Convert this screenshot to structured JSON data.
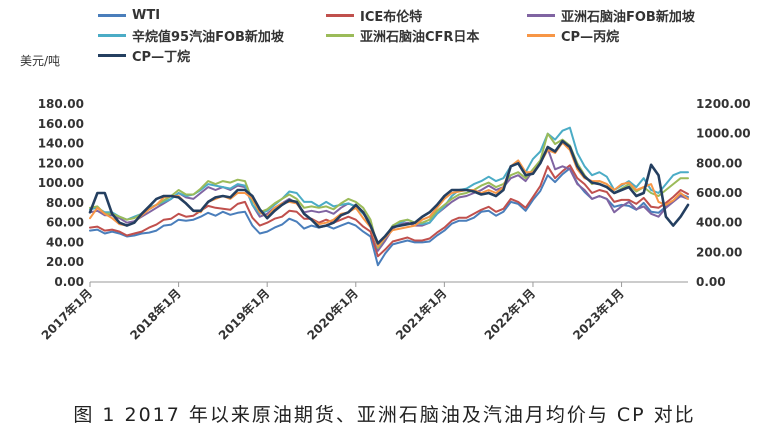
{
  "caption": "图 1  2017 年以来原油期货、亚洲石脑油及汽油月均价与 CP 对比",
  "chart_data": {
    "type": "line",
    "unit_label": "美元/吨",
    "x_ticks": [
      "2017年1月",
      "2018年1月",
      "2019年1月",
      "2020年1月",
      "2021年1月",
      "2022年1月",
      "2023年1月"
    ],
    "y_left": {
      "range": [
        0,
        180
      ],
      "ticks": [
        "0.00",
        "20.00",
        "40.00",
        "60.00",
        "80.00",
        "100.00",
        "120.00",
        "140.00",
        "160.00",
        "180.00"
      ]
    },
    "y_right": {
      "range": [
        0,
        1200
      ],
      "ticks": [
        "0.00",
        "200.00",
        "400.00",
        "600.00",
        "800.00",
        "1000.00",
        "1200.00"
      ]
    },
    "months": 82,
    "series": [
      {
        "name": "WTI",
        "axis": "left",
        "color": "#4a7ebb",
        "values": [
          52,
          53,
          49,
          51,
          49,
          46,
          47,
          49,
          50,
          52,
          57,
          58,
          63,
          62,
          63,
          66,
          70,
          67,
          71,
          68,
          70,
          71,
          57,
          49,
          51,
          55,
          58,
          64,
          61,
          54,
          57,
          55,
          57,
          54,
          57,
          60,
          57,
          51,
          46,
          17,
          29,
          38,
          40,
          42,
          40,
          40,
          41,
          47,
          52,
          59,
          62,
          62,
          65,
          71,
          72,
          67,
          71,
          81,
          79,
          72,
          83,
          92,
          108,
          101,
          109,
          115,
          100,
          91,
          84,
          87,
          84,
          76,
          78,
          77,
          73,
          80,
          71,
          70,
          76,
          82,
          89,
          86
        ]
      },
      {
        "name": "ICE布伦特",
        "axis": "left",
        "color": "#c0504d",
        "values": [
          55,
          56,
          52,
          53,
          51,
          47,
          49,
          51,
          55,
          58,
          63,
          64,
          69,
          66,
          67,
          72,
          77,
          75,
          74,
          73,
          79,
          81,
          65,
          57,
          60,
          64,
          66,
          72,
          71,
          64,
          64,
          60,
          63,
          60,
          63,
          66,
          63,
          56,
          51,
          26,
          33,
          41,
          43,
          45,
          42,
          42,
          44,
          50,
          55,
          62,
          65,
          65,
          69,
          73,
          76,
          71,
          74,
          84,
          81,
          75,
          86,
          97,
          117,
          105,
          112,
          118,
          105,
          99,
          90,
          93,
          91,
          81,
          83,
          83,
          79,
          85,
          76,
          75,
          80,
          86,
          93,
          89
        ]
      },
      {
        "name": "亚洲石脑油FOB新加坡",
        "axis": "right",
        "color": "#8064a2",
        "values": [
          470,
          480,
          450,
          450,
          430,
          400,
          410,
          440,
          470,
          500,
          530,
          560,
          600,
          570,
          560,
          600,
          640,
          620,
          640,
          620,
          650,
          640,
          520,
          440,
          460,
          500,
          530,
          560,
          530,
          470,
          480,
          470,
          480,
          460,
          500,
          530,
          510,
          470,
          400,
          210,
          280,
          360,
          390,
          400,
          380,
          380,
          400,
          460,
          500,
          540,
          570,
          580,
          600,
          620,
          650,
          620,
          640,
          700,
          720,
          680,
          750,
          800,
          900,
          760,
          780,
          760,
          660,
          620,
          560,
          580,
          560,
          470,
          510,
          540,
          490,
          510,
          460,
          440,
          500,
          540,
          580,
          560
        ]
      },
      {
        "name": "辛烷值95汽油FOB新加坡",
        "axis": "right",
        "color": "#4bacc6",
        "values": [
          490,
          500,
          470,
          470,
          440,
          420,
          440,
          460,
          500,
          520,
          540,
          560,
          600,
          580,
          590,
          620,
          660,
          650,
          640,
          630,
          660,
          650,
          520,
          460,
          480,
          520,
          560,
          610,
          600,
          540,
          540,
          510,
          540,
          510,
          520,
          530,
          510,
          460,
          400,
          230,
          300,
          380,
          400,
          420,
          400,
          390,
          400,
          460,
          510,
          580,
          620,
          630,
          660,
          680,
          710,
          680,
          700,
          780,
          800,
          740,
          830,
          880,
          1000,
          960,
          1020,
          1040,
          870,
          780,
          720,
          740,
          710,
          620,
          650,
          680,
          640,
          700,
          620,
          600,
          660,
          720,
          740,
          740
        ]
      },
      {
        "name": "亚洲石脑油CFR日本",
        "axis": "right",
        "color": "#9bbb59",
        "values": [
          500,
          510,
          460,
          460,
          440,
          420,
          430,
          460,
          490,
          520,
          550,
          580,
          620,
          590,
          590,
          630,
          680,
          660,
          680,
          670,
          690,
          680,
          550,
          470,
          490,
          530,
          560,
          590,
          560,
          500,
          510,
          500,
          510,
          490,
          530,
          560,
          540,
          500,
          420,
          230,
          300,
          380,
          410,
          420,
          400,
          400,
          420,
          480,
          520,
          560,
          590,
          600,
          620,
          650,
          670,
          640,
          660,
          720,
          740,
          700,
          760,
          820,
          1000,
          930,
          960,
          920,
          800,
          720,
          660,
          680,
          660,
          600,
          630,
          660,
          610,
          640,
          600,
          580,
          620,
          660,
          700,
          700
        ]
      },
      {
        "name": "CP—丙烷",
        "axis": "right",
        "color": "#f79646",
        "values": [
          430,
          500,
          460,
          430,
          390,
          380,
          400,
          450,
          490,
          520,
          570,
          580,
          580,
          530,
          480,
          470,
          540,
          560,
          580,
          560,
          600,
          600,
          560,
          470,
          440,
          500,
          530,
          540,
          530,
          460,
          420,
          390,
          400,
          420,
          460,
          470,
          500,
          430,
          370,
          240,
          300,
          350,
          360,
          370,
          380,
          420,
          440,
          500,
          560,
          600,
          610,
          620,
          620,
          600,
          620,
          600,
          640,
          780,
          820,
          740,
          740,
          800,
          890,
          870,
          940,
          890,
          760,
          700,
          680,
          680,
          660,
          620,
          660,
          670,
          620,
          640,
          660,
          540,
          520,
          550,
          600,
          560
        ]
      },
      {
        "name": "CP—丁烷",
        "axis": "right",
        "color": "#243f60",
        "values": [
          470,
          600,
          600,
          460,
          400,
          380,
          400,
          460,
          510,
          560,
          580,
          580,
          570,
          530,
          480,
          480,
          540,
          570,
          580,
          570,
          620,
          620,
          580,
          490,
          430,
          480,
          520,
          550,
          540,
          460,
          420,
          370,
          380,
          400,
          450,
          470,
          520,
          470,
          380,
          260,
          310,
          370,
          380,
          390,
          400,
          440,
          470,
          520,
          580,
          620,
          620,
          620,
          610,
          590,
          600,
          580,
          620,
          780,
          800,
          720,
          730,
          800,
          910,
          880,
          950,
          910,
          780,
          710,
          670,
          660,
          640,
          600,
          620,
          640,
          580,
          600,
          790,
          720,
          440,
          380,
          440,
          520
        ]
      }
    ]
  }
}
